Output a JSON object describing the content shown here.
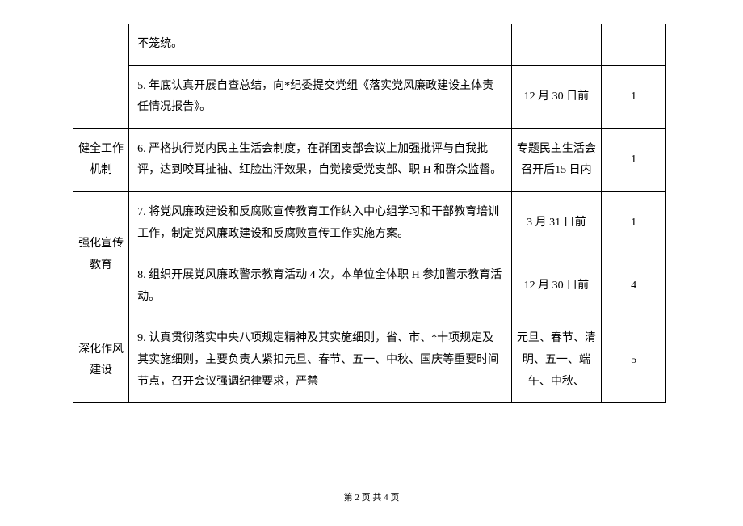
{
  "table": {
    "row1": {
      "col2": "不笼统。"
    },
    "row2": {
      "col2": "5. 年底认真开展自查总结，向*纪委提交党组《落实党风廉政建设主体责任情况报告》。",
      "col3": "12 月 30 日前",
      "col4": "1"
    },
    "row3": {
      "col1": "健全工作机制",
      "col2": "6. 严格执行党内民主生活会制度，在群团支部会议上加强批评与自我批评，达到咬耳扯袖、红脸出汗效果，自觉接受党支部、职 H 和群众监督。",
      "col3": "专题民主生活会召开后15 日内",
      "col4": "1"
    },
    "row4": {
      "col1": "强化宣传教育",
      "col2": "7. 将党风廉政建设和反腐败宣传教育工作纳入中心组学习和干部教育培训工作，制定党风廉政建设和反腐败宣传工作实施方案。",
      "col3": "3 月 31 日前",
      "col4": "1"
    },
    "row5": {
      "col2": "8. 组织开展党风廉政警示教育活动 4 次，本单位全体职 H 参加警示教育活动。",
      "col3": "12 月 30 日前",
      "col4": "4"
    },
    "row6": {
      "col1": "深化作风建设",
      "col2": "9. 认真贯彻落实中央八项规定精神及其实施细则，省、市、*十项规定及其实施细则，主要负责人紧扣元旦、春节、五一、中秋、国庆等重要时间节点，召开会议强调纪律要求，严禁",
      "col3": "元旦、春节、清明、五一、端午、中秋、",
      "col4": "5"
    }
  },
  "footer": "第 2 页 共 4 页",
  "colors": {
    "border": "#000000",
    "text": "#000000",
    "background": "#ffffff"
  },
  "typography": {
    "cell_fontsize": 14,
    "footer_fontsize": 11,
    "line_height": 1.9
  }
}
